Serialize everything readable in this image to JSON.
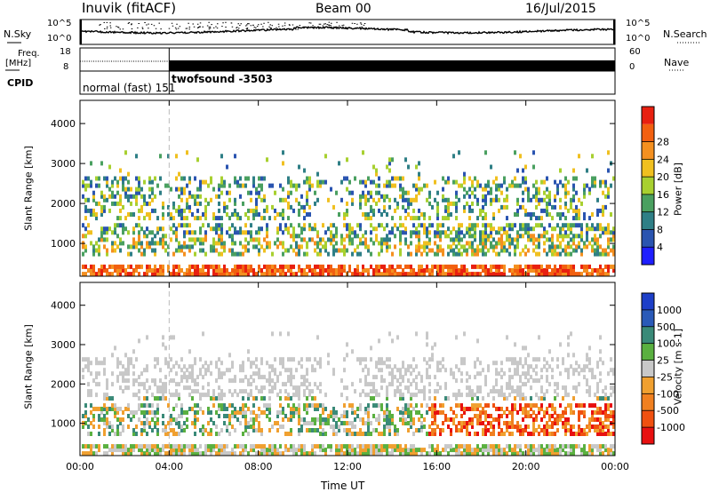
{
  "header": {
    "station": "Inuvik (fitACF)",
    "beam": "Beam 00",
    "date": "16/Jul/2015"
  },
  "status_panels": {
    "nsky_label": "N.Sky",
    "nsearch_label": "N.Search",
    "noise_ticks_left": [
      "10^5",
      "10^0"
    ],
    "noise_ticks_right": [
      "10^5",
      "10^0"
    ],
    "freq_label_top": "Freq.",
    "freq_label_unit": "[MHz]",
    "freq_ticks": [
      "18",
      "8"
    ],
    "nave_label": "Nave",
    "nave_ticks": [
      "60",
      "0"
    ],
    "cpid_label": "CPID",
    "cpid_mode_1": "normal (fast) 151",
    "cpid_mode_2": "twofsound -3503"
  },
  "chart_data": [
    {
      "type": "heatmap",
      "title": "",
      "xlabel": "Time UT",
      "ylabel": "Slant Range [km]",
      "x_ticks": [
        "00:00",
        "04:00",
        "08:00",
        "12:00",
        "16:00",
        "20:00",
        "00:00"
      ],
      "x_range_hours": [
        0,
        24
      ],
      "y_ticks": [
        1000,
        2000,
        3000,
        4000
      ],
      "ylim": [
        180,
        4580
      ],
      "colorbar": {
        "label": "Power [dB]",
        "ticks": [
          "4",
          "8",
          "12",
          "16",
          "20",
          "24",
          "28"
        ],
        "colors": [
          "#1e1eff",
          "#2a54b0",
          "#2f7f86",
          "#4aa060",
          "#a8d030",
          "#f0c020",
          "#f49020",
          "#f26010",
          "#e82010"
        ]
      },
      "mode_change_hour": 4.0
    },
    {
      "type": "heatmap",
      "title": "",
      "xlabel": "Time UT",
      "ylabel": "Slant Range [km]",
      "x_ticks": [
        "00:00",
        "04:00",
        "08:00",
        "12:00",
        "16:00",
        "20:00",
        "00:00"
      ],
      "x_range_hours": [
        0,
        24
      ],
      "y_ticks": [
        1000,
        2000,
        3000,
        4000
      ],
      "ylim": [
        180,
        4580
      ],
      "colorbar": {
        "label": "Velocity [m s-1]",
        "ticks": [
          "1000",
          "500",
          "100",
          "25",
          "-25",
          "-100",
          "-500",
          "-1000"
        ],
        "colors": [
          "#1d3fc8",
          "#2a5ab8",
          "#3a8a78",
          "#5ab040",
          "#c8c8c8",
          "#f0a030",
          "#f08020",
          "#f05010",
          "#e81010"
        ]
      },
      "mode_change_hour": 4.0
    }
  ]
}
